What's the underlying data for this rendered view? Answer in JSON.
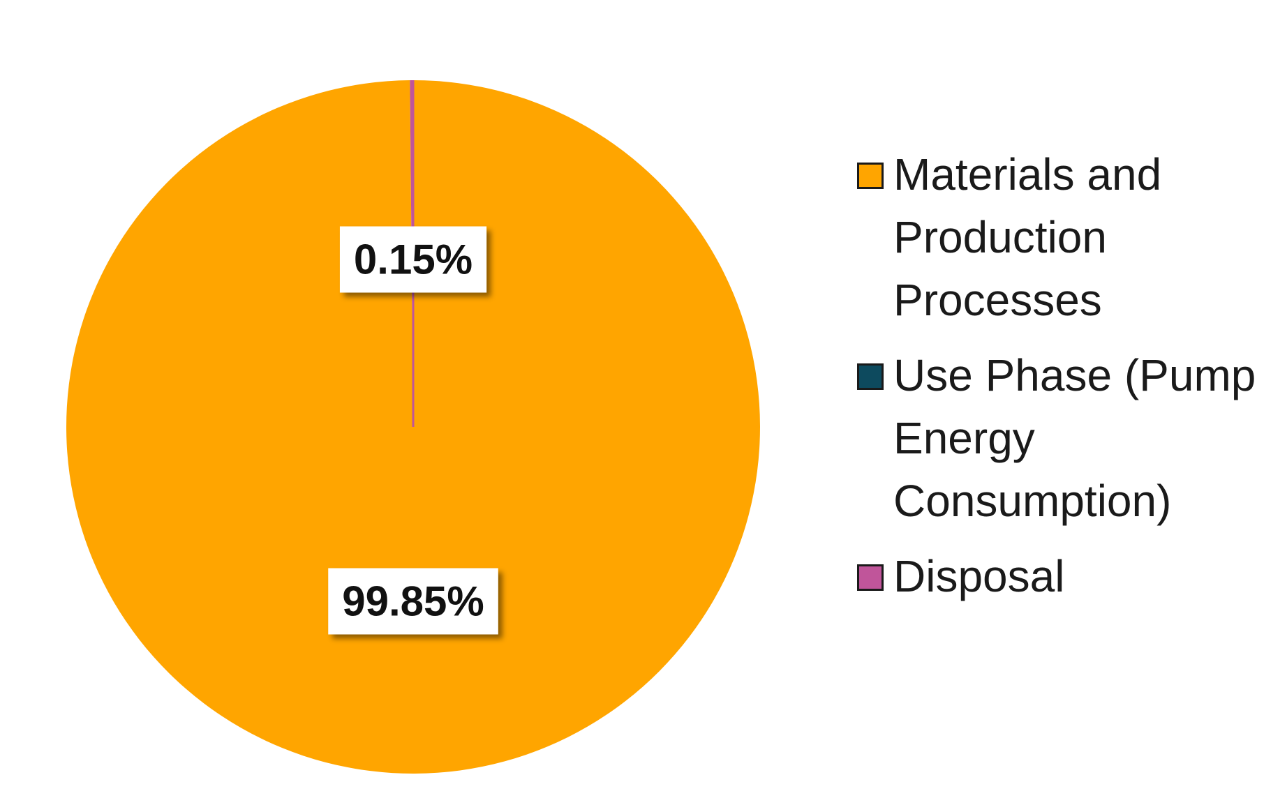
{
  "chart_data": {
    "type": "pie",
    "title": "",
    "legend_position": "right",
    "slices": [
      {
        "name": "Materials and Production Processes",
        "value": 99.85,
        "label": "99.85%",
        "color": "#FFA500"
      },
      {
        "name": "Use Phase (Pump Energy Consumption)",
        "value": 0.0,
        "label": "",
        "color": "#0D4A5E"
      },
      {
        "name": "Disposal",
        "value": 0.15,
        "label": "0.15%",
        "color": "#C0559A"
      }
    ]
  }
}
